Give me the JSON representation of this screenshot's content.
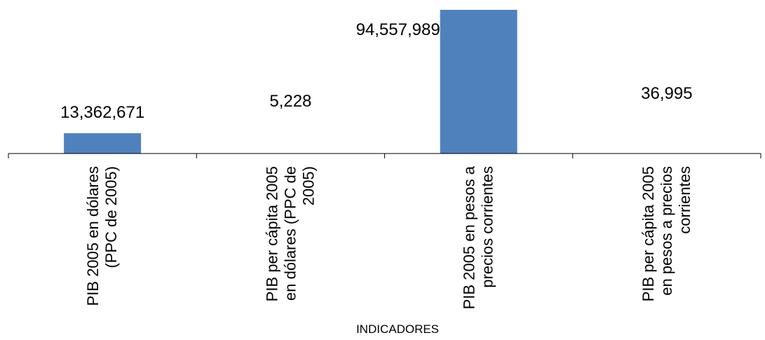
{
  "chart_data": {
    "type": "bar",
    "categories": [
      [
        "PIB 2005 en dólares",
        "(PPC de 2005)"
      ],
      [
        "PIB per cápita 2005",
        "en dólares (PPC de",
        "2005)"
      ],
      [
        "PIB 2005 en pesos a",
        "precios corrientes"
      ],
      [
        "PIB per cápita 2005",
        "en pesos a precios",
        "corrientes"
      ]
    ],
    "values": [
      13362671,
      5228,
      94557989,
      36995
    ],
    "value_labels": [
      "13,362,671",
      "5,228",
      "94,557,989",
      "36,995"
    ],
    "title": "",
    "xlabel": "INDICADORES",
    "ylabel": "",
    "ylim": [
      0,
      94557989
    ],
    "grid": false,
    "legend": "none",
    "bar_color": "#4F81BD",
    "axis_color": "#000000"
  }
}
